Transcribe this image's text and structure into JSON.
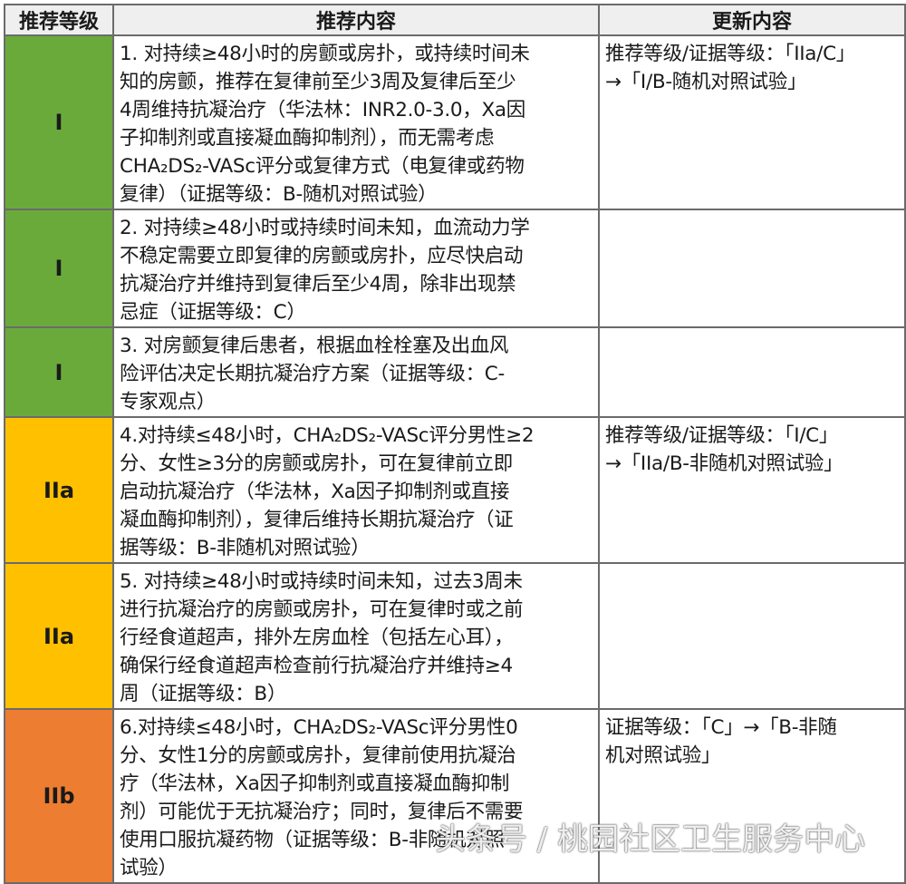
{
  "header": {
    "level": "推荐等级",
    "content": "推荐内容",
    "update": "更新内容"
  },
  "colors": {
    "I": "#6aaa3a",
    "IIa": "#ffc000",
    "IIb": "#ed7d31"
  },
  "rows": [
    {
      "level": "I",
      "height": 190,
      "content": [
        "1. 对持续≥48小时的房颤或房扑，或持续时间未",
        "知的房颤，推荐在复律前至少3周及复律后至少",
        "4周维持抗凝治疗（华法林：INR2.0-3.0，Xa因",
        "子抑制剂或直接凝血酶抑制剂），而无需考虑",
        "CHA₂DS₂-VASc评分或复律方式（电复律或药物",
        "复律）（证据等级：B-随机对照试验）"
      ],
      "update": [
        "推荐等级/证据等级：「IIa/C」",
        "→「I/B-随机对照试验」"
      ]
    },
    {
      "level": "I",
      "height": 126,
      "content": [
        "2. 对持续≥48小时或持续时间未知，血流动力学",
        "不稳定需要立即复律的房颤或房扑，应尽快启动",
        "抗凝治疗并维持到复律后至少4周，除非出现禁",
        "忌症（证据等级：C）"
      ],
      "update": []
    },
    {
      "level": "I",
      "height": 98,
      "content": [
        "3. 对房颤复律后患者，根据血栓栓塞及出血风",
        "险评估决定长期抗凝治疗方案（证据等级：C-",
        "专家观点）"
      ],
      "update": []
    },
    {
      "level": "IIa",
      "height": 156,
      "content": [
        "4.对持续≤48小时，CHA₂DS₂-VASc评分男性≥2",
        "分、女性≥3分的房颤或房扑，可在复律前立即",
        "启动抗凝治疗（华法林，Xa因子抑制剂或直接",
        "凝血酶抑制剂），复律后维持长期抗凝治疗（证",
        "据等级：B-非随机对照试验）"
      ],
      "update": [
        "推荐等级/证据等级：「I/C」",
        "→「IIa/B-非随机对照试验」"
      ]
    },
    {
      "level": "IIa",
      "height": 158,
      "content": [
        "5. 对持续≥48小时或持续时间未知，过去3周未",
        "进行抗凝治疗的房颤或房扑，可在复律时或之前",
        "行经食道超声，排外左房血栓（包括左心耳），",
        "确保行经食道超声检查前行抗凝治疗并维持≥4",
        "周（证据等级：B）"
      ],
      "update": []
    },
    {
      "level": "IIb",
      "height": 184,
      "content": [
        "6.对持续≤48小时，CHA₂DS₂-VASc评分男性0",
        "分、女性1分的房颤或房扑，复律前使用抗凝治",
        "疗（华法林，Xa因子抑制剂或直接凝血酶抑制",
        "剂）可能优于无抗凝治疗；同时，复律后不需要",
        "使用口服抗凝药物（证据等级：B-非随机对照",
        "试验）"
      ],
      "update": [
        "证据等级：「C」→「B-非随",
        "机对照试验」"
      ]
    }
  ],
  "watermark": "头条号 / 桃园社区卫生服务中心"
}
